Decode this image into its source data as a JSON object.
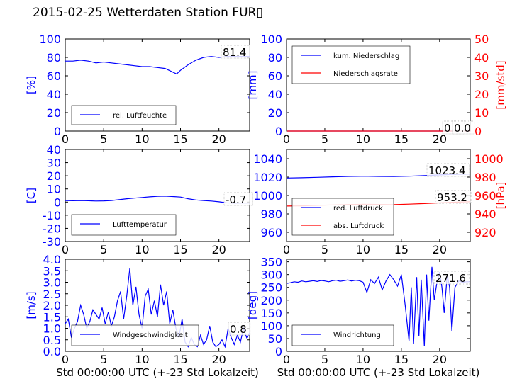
{
  "title": "2015-02-25 Wetterdaten Station FUR▯",
  "chart_data": [
    {
      "type": "line",
      "name": "humidity",
      "ylabel": "[%]",
      "ylim": [
        0,
        100
      ],
      "yticks": [
        0,
        20,
        40,
        60,
        80,
        100
      ],
      "xlim": [
        0,
        24
      ],
      "xticks": [
        0,
        5,
        10,
        15,
        20
      ],
      "xlabel": "",
      "legend": "lower-left",
      "series": [
        {
          "name": "rel. Luftfeuchte",
          "color": "#0000ff",
          "x": [
            0,
            1,
            2,
            3,
            4,
            5,
            6,
            7,
            8,
            9,
            10,
            11,
            12,
            13,
            14,
            14.5,
            15,
            16,
            17,
            18,
            19,
            20,
            21,
            22,
            23,
            24
          ],
          "y": [
            76,
            76,
            77,
            76,
            74,
            75,
            74,
            73,
            72,
            71,
            70,
            70,
            69,
            68,
            64,
            62,
            66,
            72,
            77,
            80,
            81,
            80,
            81,
            81,
            81,
            81
          ]
        }
      ],
      "last_value_label": "81.4"
    },
    {
      "type": "line",
      "name": "precipitation",
      "ylabel": "[mm]",
      "ylim": [
        0,
        100
      ],
      "yticks": [
        0,
        20,
        40,
        60,
        80,
        100
      ],
      "ylabel_right": "[mm/std]",
      "ylim_right": [
        0,
        50
      ],
      "yticks_right": [
        0,
        10,
        20,
        30,
        40,
        50
      ],
      "xlim": [
        0,
        24
      ],
      "xticks": [
        0,
        5,
        10,
        15,
        20
      ],
      "xlabel": "",
      "legend": "upper-left",
      "series": [
        {
          "name": "kum. Niederschlag",
          "color": "#0000ff",
          "axis": "left",
          "x": [
            0,
            24
          ],
          "y": [
            0,
            0
          ]
        },
        {
          "name": "Niederschlagsrate",
          "color": "#ff0000",
          "axis": "right",
          "x": [
            0,
            24
          ],
          "y": [
            0,
            0
          ]
        }
      ],
      "last_value_label": "0.0",
      "last_value_label_2": "0.0"
    },
    {
      "type": "line",
      "name": "temperature",
      "ylabel": "[C]",
      "ylim": [
        -30,
        40
      ],
      "yticks": [
        -30,
        -20,
        -10,
        0,
        10,
        20,
        30,
        40
      ],
      "xlim": [
        0,
        24
      ],
      "xticks": [
        0,
        5,
        10,
        15,
        20
      ],
      "xlabel": "",
      "legend": "lower-left",
      "series": [
        {
          "name": "Lufttemperatur",
          "color": "#0000ff",
          "x": [
            0,
            1,
            2,
            3,
            4,
            5,
            6,
            7,
            8,
            9,
            10,
            11,
            12,
            13,
            14,
            15,
            16,
            17,
            18,
            19,
            20,
            21,
            22,
            23,
            24
          ],
          "y": [
            1.2,
            1.0,
            1.1,
            1.0,
            0.8,
            0.9,
            1.2,
            1.8,
            2.5,
            3.0,
            3.5,
            4.0,
            4.4,
            4.5,
            4.2,
            3.8,
            2.5,
            1.6,
            1.2,
            0.8,
            0.2,
            -0.6,
            -0.8,
            -0.7,
            -0.7
          ]
        }
      ],
      "last_value_label": "-0.7"
    },
    {
      "type": "line",
      "name": "pressure",
      "ylabel": "",
      "ylim": [
        950,
        1050
      ],
      "yticks": [
        960,
        980,
        1000,
        1020,
        1040
      ],
      "ylabel_right": "[hPa]",
      "ylim_right": [
        910,
        1010
      ],
      "yticks_right": [
        920,
        940,
        960,
        980,
        1000
      ],
      "xlim": [
        0,
        24
      ],
      "xticks": [
        0,
        5,
        10,
        15,
        20
      ],
      "xlabel": "",
      "legend": "lower-left",
      "series": [
        {
          "name": "red. Luftdruck",
          "color": "#0000ff",
          "axis": "left",
          "x": [
            0,
            2,
            4,
            6,
            8,
            10,
            12,
            14,
            16,
            18,
            20,
            22,
            24
          ],
          "y": [
            1019,
            1019.3,
            1019.8,
            1020.3,
            1020.8,
            1021,
            1020.8,
            1020.6,
            1021,
            1021.6,
            1022.4,
            1023,
            1023.4
          ]
        },
        {
          "name": "abs. Luftdruck",
          "color": "#ff0000",
          "axis": "right",
          "x": [
            0,
            2,
            4,
            6,
            8,
            10,
            12,
            14,
            16,
            18,
            20,
            22,
            24
          ],
          "y": [
            948.5,
            948.8,
            949.3,
            949.8,
            950.2,
            950.5,
            950.3,
            950.1,
            950.6,
            951.2,
            952.0,
            952.7,
            953.2
          ]
        }
      ],
      "last_value_label": "1023.4",
      "last_value_label_2": "953.2"
    },
    {
      "type": "line",
      "name": "windspeed",
      "ylabel": "[m/s]",
      "ylim": [
        0,
        4
      ],
      "yticks": [
        0,
        0.5,
        1,
        1.5,
        2,
        2.5,
        3,
        3.5,
        4
      ],
      "ytick_labels": [
        "0.0",
        "0.5",
        "1.0",
        "1.5",
        "2.0",
        "2.5",
        "3.0",
        "3.5",
        "4.0"
      ],
      "xlim": [
        0,
        24
      ],
      "xticks": [
        0,
        5,
        10,
        15,
        20
      ],
      "xlabel": "Std 00:00:00 UTC (+-23 Std Lokalzeit)",
      "legend": "lower-right",
      "series": [
        {
          "name": "Windgeschwindigkeit",
          "color": "#0000ff",
          "x": [
            0,
            0.4,
            0.8,
            1.2,
            1.6,
            2.0,
            2.4,
            2.8,
            3.2,
            3.6,
            4.0,
            4.4,
            4.8,
            5.2,
            5.6,
            6.0,
            6.4,
            6.8,
            7.2,
            7.6,
            8.0,
            8.4,
            8.8,
            9.2,
            9.6,
            10.0,
            10.4,
            10.8,
            11.2,
            11.6,
            12.0,
            12.4,
            12.8,
            13.2,
            13.6,
            14.0,
            14.4,
            14.8,
            15.2,
            15.6,
            16.0,
            16.4,
            16.8,
            17.2,
            17.6,
            18.0,
            18.4,
            18.8,
            19.2,
            19.6,
            20.0,
            20.4,
            20.8,
            21.2,
            21.6,
            22.0,
            22.4,
            22.8,
            23.2,
            23.6,
            24.0
          ],
          "y": [
            1.2,
            1.4,
            0.6,
            1.0,
            1.3,
            2.0,
            1.6,
            1.0,
            1.3,
            1.8,
            1.6,
            1.4,
            1.9,
            1.2,
            1.7,
            1.1,
            1.5,
            2.2,
            2.6,
            1.4,
            2.4,
            3.6,
            2.0,
            2.8,
            1.6,
            1.0,
            2.4,
            2.7,
            1.6,
            2.2,
            1.5,
            2.9,
            2.0,
            2.6,
            1.2,
            1.8,
            1.0,
            0.6,
            1.4,
            0.4,
            0.2,
            0.6,
            0.3,
            0.2,
            0.7,
            0.3,
            0.5,
            1.1,
            0.4,
            0.2,
            0.3,
            0.5,
            0.2,
            1.0,
            0.6,
            0.3,
            0.7,
            0.4,
            1.0,
            0.6,
            0.8
          ]
        }
      ],
      "last_value_label": "0.8"
    },
    {
      "type": "line",
      "name": "winddirection",
      "ylabel": "[deg]",
      "ylim": [
        0,
        360
      ],
      "yticks": [
        0,
        50,
        100,
        150,
        200,
        250,
        300,
        350
      ],
      "xlim": [
        0,
        24
      ],
      "xticks": [
        0,
        5,
        10,
        15,
        20
      ],
      "xlabel": "Std 00:00:00 UTC (+-23 Std Lokalzeit)",
      "legend": "lower-left",
      "series": [
        {
          "name": "Windrichtung",
          "color": "#0000ff",
          "x": [
            0,
            0.5,
            1,
            1.5,
            2,
            2.5,
            3,
            3.5,
            4,
            4.5,
            5,
            5.5,
            6,
            6.5,
            7,
            7.5,
            8,
            8.5,
            9,
            9.5,
            10,
            10.5,
            11,
            11.5,
            12,
            12.5,
            13,
            13.5,
            14,
            14.5,
            15,
            15.5,
            16,
            16.3,
            16.6,
            17,
            17.3,
            17.6,
            18,
            18.3,
            18.6,
            19,
            19.3,
            19.6,
            20,
            20.3,
            20.6,
            21,
            21.3,
            21.6,
            22,
            22.5,
            23,
            23.5,
            24
          ],
          "y": [
            265,
            268,
            272,
            270,
            275,
            272,
            274,
            276,
            273,
            277,
            275,
            272,
            276,
            278,
            274,
            276,
            279,
            275,
            278,
            276,
            270,
            230,
            280,
            265,
            290,
            240,
            275,
            300,
            280,
            255,
            300,
            180,
            40,
            250,
            30,
            290,
            60,
            280,
            20,
            300,
            120,
            330,
            200,
            260,
            310,
            250,
            150,
            300,
            250,
            80,
            250,
            275,
            270,
            272,
            272
          ]
        }
      ],
      "last_value_label": "271.6"
    }
  ]
}
